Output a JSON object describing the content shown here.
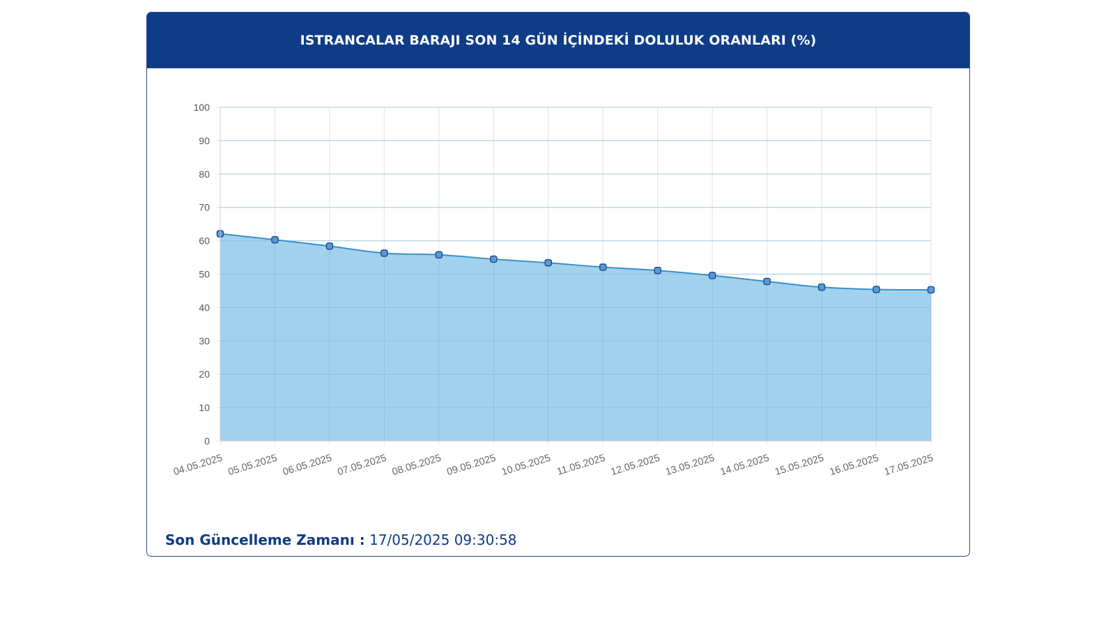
{
  "header": {
    "title": "ISTRANCALAR BARAJI SON 14 GÜN İÇİNDEKİ DOLULUK ORANLARI (%)"
  },
  "footer": {
    "label": "Son Güncelleme Zamanı :",
    "value": "17/05/2025 09:30:58"
  },
  "colors": {
    "header_bg": "#0f3c86",
    "area_fill": "#9dcfec",
    "line": "#3a8fc8",
    "marker_fill": "#5a9ad6",
    "marker_stroke": "#1e4f91",
    "grid": "#e2e2e2"
  },
  "chart_data": {
    "type": "area",
    "title": "ISTRANCALAR BARAJI SON 14 GÜN İÇİNDEKİ DOLULUK ORANLARI (%)",
    "xlabel": "",
    "ylabel": "",
    "ylim": [
      0,
      100
    ],
    "yticks": [
      "0",
      "10",
      "20",
      "30",
      "40",
      "50",
      "60",
      "70",
      "80",
      "90",
      "100"
    ],
    "categories": [
      "04.05.2025",
      "05.05.2025",
      "06.05.2025",
      "07.05.2025",
      "08.05.2025",
      "09.05.2025",
      "10.05.2025",
      "11.05.2025",
      "12.05.2025",
      "13.05.2025",
      "14.05.2025",
      "15.05.2025",
      "16.05.2025",
      "17.05.2025"
    ],
    "values": [
      62.1,
      60.3,
      58.4,
      56.3,
      55.8,
      54.5,
      53.4,
      52.1,
      51.1,
      49.6,
      47.8,
      46.1,
      45.4,
      45.3
    ],
    "grid": true,
    "legend": "none"
  }
}
